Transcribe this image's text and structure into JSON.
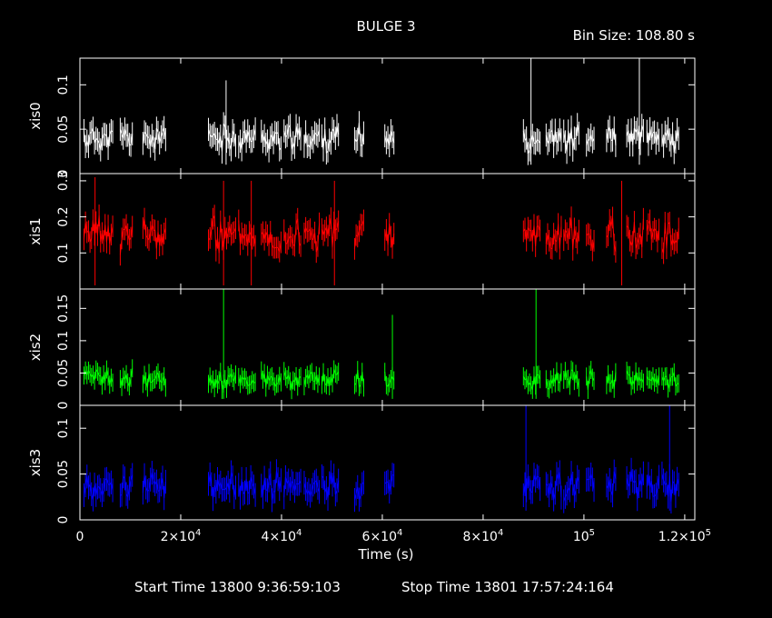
{
  "chart_data": {
    "type": "scatter",
    "title": "BULGE 3",
    "bin_size_label": "Bin Size: 108.80 s",
    "xlabel": "Time (s)",
    "xlim": [
      0,
      122000
    ],
    "x_ticks": [
      {
        "value": 0,
        "label": "0",
        "exp": ""
      },
      {
        "value": 20000,
        "label": "2×10",
        "exp": "4"
      },
      {
        "value": 40000,
        "label": "4×10",
        "exp": "4"
      },
      {
        "value": 60000,
        "label": "6×10",
        "exp": "4"
      },
      {
        "value": 80000,
        "label": "8×10",
        "exp": "4"
      },
      {
        "value": 100000,
        "label": "10",
        "exp": "5"
      },
      {
        "value": 120000,
        "label": "1.2×10",
        "exp": "5"
      }
    ],
    "footer": {
      "start": "Start Time 13800  9:36:59:103",
      "stop": "Stop Time 13801 17:57:24:164"
    },
    "segments": [
      [
        800,
        6500
      ],
      [
        8000,
        10500
      ],
      [
        12500,
        17000
      ],
      [
        25500,
        31000
      ],
      [
        31500,
        35000
      ],
      [
        36000,
        40000
      ],
      [
        40500,
        44000
      ],
      [
        44500,
        47500
      ],
      [
        48000,
        51500
      ],
      [
        54500,
        56500
      ],
      [
        60500,
        62300
      ],
      [
        88000,
        91500
      ],
      [
        92500,
        95500
      ],
      [
        96000,
        99000
      ],
      [
        100500,
        102000
      ],
      [
        104500,
        106500
      ],
      [
        108500,
        112000
      ],
      [
        112500,
        115000
      ],
      [
        115500,
        119000
      ]
    ],
    "panels": [
      {
        "name": "xis0",
        "color": "#ffffff",
        "ylim": [
          0,
          0.13
        ],
        "ticks": [
          {
            "v": 0.1,
            "l": "0.1"
          },
          {
            "v": 0.05,
            "l": "0.05"
          },
          {
            "v": 0,
            "l": "0"
          }
        ],
        "mean": 0.04,
        "spread": 0.012,
        "err": 0.013,
        "seed": 11,
        "spikes": [
          [
            89500,
            0.135
          ],
          [
            111000,
            0.135
          ],
          [
            29000,
            0.105
          ]
        ]
      },
      {
        "name": "xis1",
        "color": "#ff0000",
        "ylim": [
          0,
          0.32
        ],
        "ticks": [
          {
            "v": 0.3,
            "l": "0.3"
          },
          {
            "v": 0.2,
            "l": "0.2"
          },
          {
            "v": 0.1,
            "l": "0.1"
          }
        ],
        "mean": 0.15,
        "spread": 0.04,
        "err": 0.03,
        "seed": 23,
        "spikes": [
          [
            3000,
            0.31
          ],
          [
            28500,
            0.3
          ],
          [
            34000,
            0.3
          ],
          [
            50500,
            0.3
          ],
          [
            107500,
            0.3
          ]
        ]
      },
      {
        "name": "xis2",
        "color": "#00ff00",
        "ylim": [
          0,
          0.18
        ],
        "ticks": [
          {
            "v": 0.15,
            "l": "0.15"
          },
          {
            "v": 0.1,
            "l": "0.1"
          },
          {
            "v": 0.05,
            "l": "0.05"
          },
          {
            "v": 0,
            "l": "0"
          }
        ],
        "mean": 0.04,
        "spread": 0.012,
        "err": 0.014,
        "seed": 37,
        "spikes": [
          [
            28500,
            0.18
          ],
          [
            62000,
            0.14
          ],
          [
            90500,
            0.18
          ]
        ]
      },
      {
        "name": "xis3",
        "color": "#0000ff",
        "ylim": [
          0,
          0.125
        ],
        "ticks": [
          {
            "v": 0.1,
            "l": "0.1"
          },
          {
            "v": 0.05,
            "l": "0.05"
          },
          {
            "v": 0,
            "l": "0"
          }
        ],
        "mean": 0.037,
        "spread": 0.012,
        "err": 0.013,
        "seed": 53,
        "spikes": [
          [
            88500,
            0.13
          ],
          [
            117000,
            0.13
          ]
        ]
      }
    ]
  }
}
